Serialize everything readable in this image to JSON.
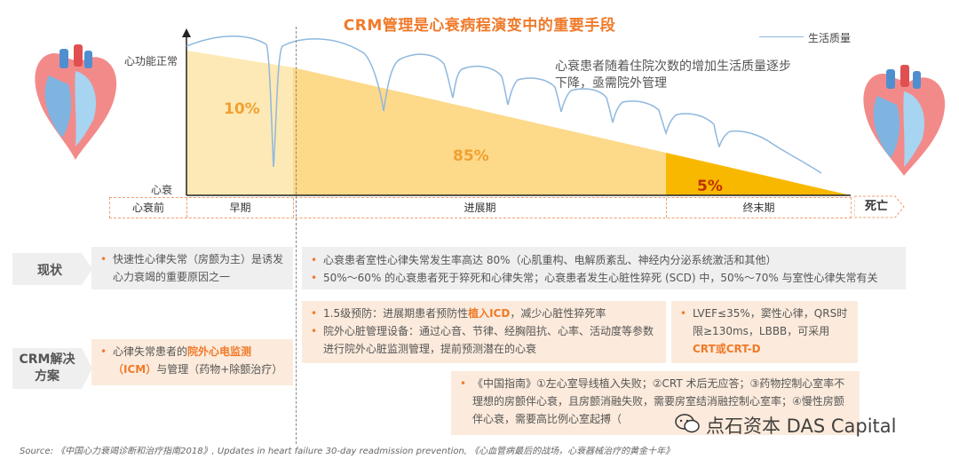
{
  "title": "CRM管理是心衰病程演变中的重要手段",
  "legend": {
    "label": "生活质量",
    "color": "#8fb8de"
  },
  "y_axis": {
    "top_label": "心功能正常",
    "bottom_label": "心衰"
  },
  "annotation": "心衰患者随着住院次数的增加生活质量逐步下降，亟需院外管理",
  "segments": [
    {
      "percent": "10%",
      "color": "#fde9b5",
      "text_color": "#f0a030"
    },
    {
      "percent": "85%",
      "color": "#fdd98a",
      "text_color": "#f0a030"
    },
    {
      "percent": "5%",
      "color": "#f9b800",
      "text_color": "#c03000"
    }
  ],
  "stages": [
    "心衰前",
    "早期",
    "进展期",
    "终末期"
  ],
  "death_label": "死亡",
  "rows": {
    "status_label": "现状",
    "solution_label": "CRM解决方案"
  },
  "status": {
    "left": [
      "快速性心律失常（房颤为主）是诱发心力衰竭的重要原因之一"
    ],
    "right": [
      "心衰患者室性心律失常发生率高达 80%（心肌重构、电解质紊乱、神经内分泌系统激活和其他）",
      "50%～60% 的心衰患者死于猝死和心律失常；心衰患者发生心脏性猝死 (SCD) 中，50%～70% 与室性心律失常有关"
    ]
  },
  "solution": {
    "left_pre": "心律失常患者的",
    "left_hl": "院外心电监测（ICM）",
    "left_post": "与管理（药物+除颤治疗）",
    "mid_1_pre": "1.5级预防：进展期患者预防性",
    "mid_1_hl": "植入ICD",
    "mid_1_post": "，减少心脏性猝死率",
    "mid_2": "院外心脏管理设备：通过心音、节律、经胸阻抗、心率、活动度等参数进行院外心脏监测管理，提前预测潜在的心衰",
    "right_text": "LVEF≤35%，窦性心律，QRS时限≥130ms，LBBB，可采用",
    "right_hl": "CRT或CRT-D",
    "bottom": "《中国指南》①左心室导线植入失败；②CRT 术后无应答；③药物控制心室率不理想的房颤伴心衰，且房颤消融失败，需要房室结消融控制心室率；④慢性房颤伴心衰，需要高比例心室起搏（"
  },
  "source": "Source: 《中国心力衰竭诊断和治疗指南2018》, Updates in heart failure 30-day readmission prevention, 《心血管病最后的战场，心衰器械治疗的黄金十年》",
  "watermark": "点石资本 DAS Capital"
}
